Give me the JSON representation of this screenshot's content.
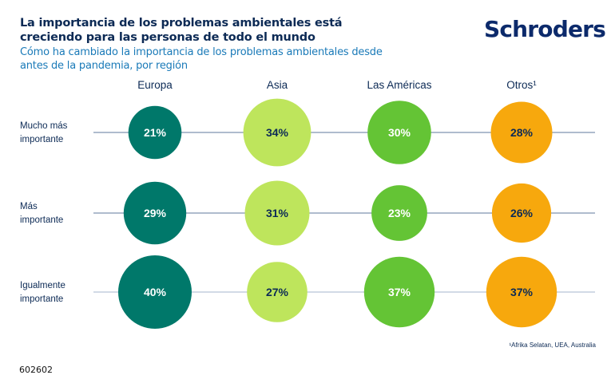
{
  "header": {
    "title": "La importancia de los problemas ambientales está creciendo para las personas de todo el mundo",
    "subtitle": "Cómo ha cambiado la importancia de los problemas ambientales desde antes de la pandemia, por región"
  },
  "brand": {
    "logo_text": "Schroders",
    "color": "#0c2a6b"
  },
  "footnote": "¹Afrika Selatan, UEA, Australia",
  "document_code": "602602",
  "chart_data": {
    "type": "scatter",
    "subtype": "bubble-matrix",
    "title": "La importancia de los problemas ambientales está creciendo para las personas de todo el mundo",
    "subtitle": "Cómo ha cambiado la importancia de los problemas ambientales desde antes de la pandemia, por región",
    "categories": [
      "Europa",
      "Asia",
      "Las Américas",
      "Otros¹"
    ],
    "rows": [
      "Mucho más importante",
      "Más importante",
      "Igualmente importante"
    ],
    "row_label_lines": [
      [
        "Mucho más",
        "importante"
      ],
      [
        "Más",
        "importante"
      ],
      [
        "Igualmente",
        "importante"
      ]
    ],
    "unit": "%",
    "series": [
      {
        "name": "Europa",
        "color": "#00786a",
        "label_color": "#ffffff",
        "values": [
          21,
          29,
          40
        ]
      },
      {
        "name": "Asia",
        "color": "#bee55c",
        "label_color": "#0c2a55",
        "values": [
          34,
          31,
          27
        ]
      },
      {
        "name": "Las Américas",
        "color": "#64c435",
        "label_color": "#ffffff",
        "values": [
          30,
          23,
          37
        ]
      },
      {
        "name": "Otros¹",
        "color": "#f7a80d",
        "label_color": "#0c2a55",
        "values": [
          28,
          26,
          37
        ]
      }
    ],
    "grid": true,
    "legend": "none"
  }
}
